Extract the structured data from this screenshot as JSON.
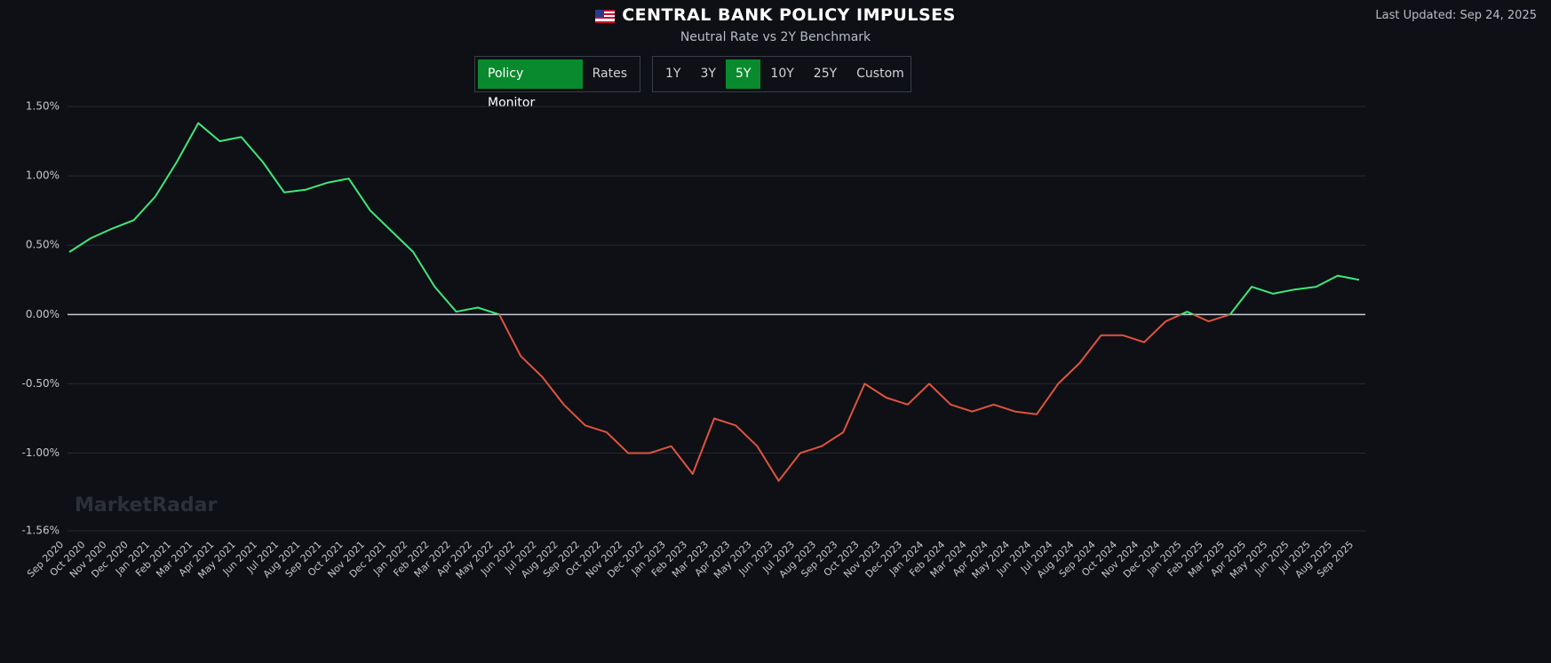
{
  "header": {
    "title": "CENTRAL BANK POLICY IMPULSES",
    "subtitle": "Neutral Rate vs 2Y Benchmark",
    "last_updated": "Last Updated: Sep 24, 2025"
  },
  "controls": {
    "view": [
      "Policy Monitor",
      "Rates"
    ],
    "range": [
      "1Y",
      "3Y",
      "5Y",
      "10Y",
      "25Y",
      "Custom"
    ]
  },
  "watermark": "MarketRadar",
  "chart_data": {
    "type": "line",
    "categories": [
      "Sep 2020",
      "Oct 2020",
      "Nov 2020",
      "Dec 2020",
      "Jan 2021",
      "Feb 2021",
      "Mar 2021",
      "Apr 2021",
      "May 2021",
      "Jun 2021",
      "Jul 2021",
      "Aug 2021",
      "Sep 2021",
      "Oct 2021",
      "Nov 2021",
      "Dec 2021",
      "Jan 2022",
      "Feb 2022",
      "Mar 2022",
      "Apr 2022",
      "May 2022",
      "Jun 2022",
      "Jul 2022",
      "Aug 2022",
      "Sep 2022",
      "Oct 2022",
      "Nov 2022",
      "Dec 2022",
      "Jan 2023",
      "Feb 2023",
      "Mar 2023",
      "Apr 2023",
      "May 2023",
      "Jun 2023",
      "Jul 2023",
      "Aug 2023",
      "Sep 2023",
      "Oct 2023",
      "Nov 2023",
      "Dec 2023",
      "Jan 2024",
      "Feb 2024",
      "Mar 2024",
      "Apr 2024",
      "May 2024",
      "Jun 2024",
      "Jul 2024",
      "Aug 2024",
      "Sep 2024",
      "Oct 2024",
      "Nov 2024",
      "Dec 2024",
      "Jan 2025",
      "Feb 2025",
      "Mar 2025",
      "Apr 2025",
      "May 2025",
      "Jun 2025",
      "Jul 2025",
      "Aug 2025",
      "Sep 2025"
    ],
    "values": [
      0.45,
      0.55,
      0.62,
      0.68,
      0.85,
      1.1,
      1.38,
      1.25,
      1.28,
      1.1,
      0.88,
      0.9,
      0.95,
      0.98,
      0.75,
      0.6,
      0.45,
      0.2,
      0.02,
      0.05,
      0.0,
      -0.3,
      -0.45,
      -0.65,
      -0.8,
      -0.85,
      -1.0,
      -1.0,
      -0.95,
      -1.15,
      -0.75,
      -0.8,
      -0.95,
      -1.2,
      -1.0,
      -0.95,
      -0.85,
      -0.5,
      -0.6,
      -0.65,
      -0.5,
      -0.65,
      -0.7,
      -0.65,
      -0.7,
      -0.72,
      -0.5,
      -0.35,
      -0.15,
      -0.15,
      -0.2,
      -0.05,
      0.02,
      -0.05,
      0.0,
      0.2,
      0.15,
      0.18,
      0.2,
      0.28,
      0.25
    ],
    "color_above": "#3ee87a",
    "color_below": "#e0533f",
    "ylim": [
      -1.56,
      1.5
    ],
    "yticks": [
      {
        "value": 1.5,
        "label": "1.50%"
      },
      {
        "value": 1.0,
        "label": "1.00%"
      },
      {
        "value": 0.5,
        "label": "0.50%"
      },
      {
        "value": 0,
        "label": "0.00%"
      },
      {
        "value": -0.5,
        "label": "-0.50%"
      },
      {
        "value": -1.0,
        "label": "-1.00%"
      },
      {
        "value": -1.56,
        "label": "-1.56%"
      }
    ],
    "grid": true
  }
}
